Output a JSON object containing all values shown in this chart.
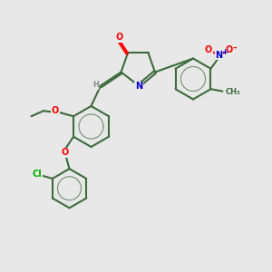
{
  "title": "",
  "bg_color": "#e8e8e8",
  "bond_color": "#3d6b3d",
  "atom_colors": {
    "O": "#ff0000",
    "N": "#0000cc",
    "Cl": "#00aa00",
    "H": "#888888",
    "C": "#3d6b3d"
  },
  "figsize": [
    3.0,
    3.0
  ],
  "dpi": 100
}
